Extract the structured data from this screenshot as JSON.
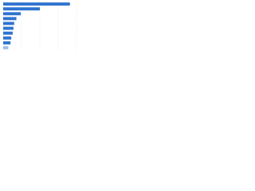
{
  "chart_data": {
    "type": "bar",
    "orientation": "horizontal",
    "categories": [
      null,
      null,
      null,
      null,
      null,
      null,
      null,
      null,
      null,
      null
    ],
    "values": [
      91,
      50,
      24,
      18,
      15,
      14,
      13,
      11,
      10,
      7
    ],
    "colors": [
      "#2f74d0",
      "#2f74d0",
      "#2f74d0",
      "#2f74d0",
      "#2f74d0",
      "#2f74d0",
      "#2f74d0",
      "#2f74d0",
      "#2f74d0",
      "#9fc0ea"
    ],
    "xlim": [
      0,
      100
    ],
    "xticks": [
      0,
      25,
      50,
      75,
      100
    ],
    "grid": true
  }
}
